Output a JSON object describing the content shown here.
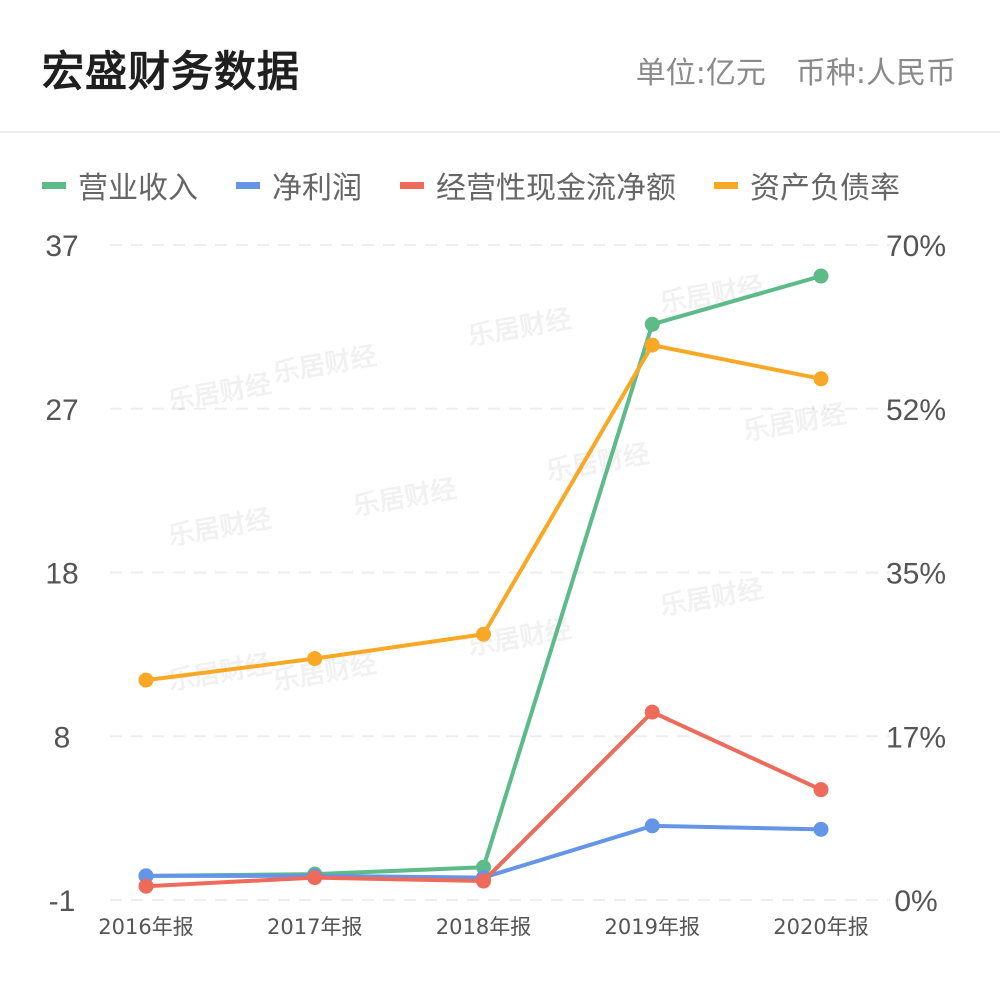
{
  "header": {
    "title": "宏盛财务数据",
    "unit": "单位:亿元",
    "currency": "币种:人民币"
  },
  "watermark": "乐居财经",
  "chart_data": {
    "type": "line",
    "categories": [
      "2016年报",
      "2017年报",
      "2018年报",
      "2019年报",
      "2020年报"
    ],
    "y_left_ticks": [
      "37",
      "27",
      "18",
      "8",
      "-1"
    ],
    "y_right_ticks": [
      "70%",
      "52%",
      "35%",
      "17%",
      "0%"
    ],
    "ylim_left": [
      -1,
      37
    ],
    "ylim_right": [
      0,
      70
    ],
    "grid": true,
    "legend_position": "top-left",
    "series": [
      {
        "name": "营业收入",
        "axis": "left",
        "color": "#5dbb8a",
        "values": [
          0.4,
          0.5,
          0.9,
          32.4,
          35.2
        ]
      },
      {
        "name": "净利润",
        "axis": "left",
        "color": "#6495e6",
        "values": [
          0.4,
          0.4,
          0.3,
          3.3,
          3.1
        ]
      },
      {
        "name": "经营性现金流净额",
        "axis": "left",
        "color": "#ee6a5b",
        "values": [
          -0.2,
          0.3,
          0.1,
          9.9,
          5.4
        ]
      },
      {
        "name": "资产负债率",
        "axis": "right",
        "color": "#f9a825",
        "values": [
          23.5,
          25.8,
          28.4,
          59.3,
          55.7
        ]
      }
    ]
  }
}
